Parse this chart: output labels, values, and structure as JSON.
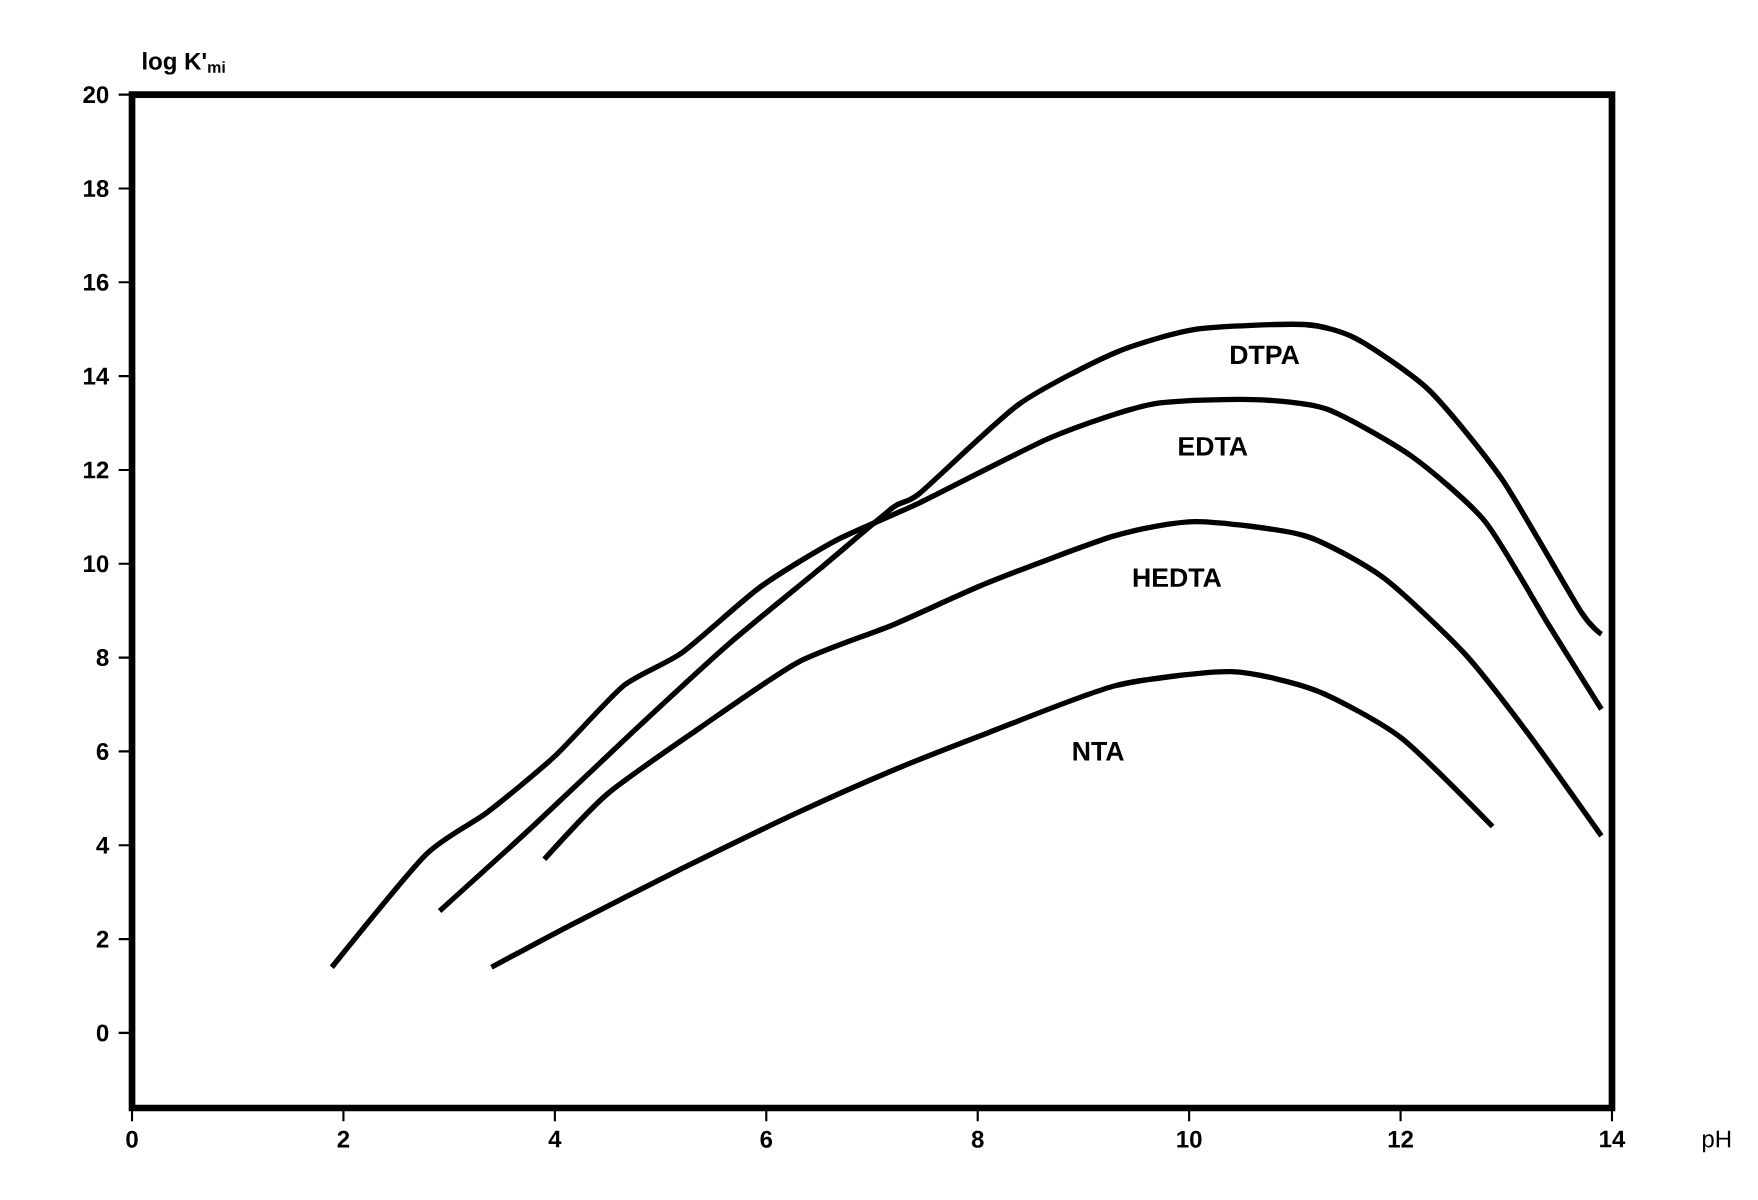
{
  "chart_data": {
    "type": "line",
    "ylabel": "log K'$_{mi}$",
    "xlabel": "pH",
    "xlim": [
      0,
      14
    ],
    "ylim": [
      -1.6,
      20
    ],
    "xticks": [
      0,
      2,
      4,
      6,
      8,
      10,
      12,
      14
    ],
    "yticks": [
      0,
      2,
      4,
      6,
      8,
      10,
      12,
      14,
      16,
      18,
      20
    ],
    "marker": "none",
    "line_style": "solid",
    "series": [
      {
        "name": "DTPA",
        "color": "#000000",
        "x": [
          2.91,
          3.79,
          4.73,
          5.65,
          6.51,
          7.2,
          7.45,
          8.39,
          9.3,
          10.07,
          11.09,
          11.58,
          12.27,
          12.96,
          13.7,
          13.9
        ],
        "values": [
          2.6,
          4.4,
          6.4,
          8.3,
          9.9,
          11.2,
          11.5,
          13.4,
          14.5,
          15.0,
          15.1,
          14.8,
          13.7,
          11.8,
          9.0,
          8.5
        ]
      },
      {
        "name": "EDTA",
        "color": "#000000",
        "x": [
          1.89,
          2.78,
          3.36,
          4.0,
          4.65,
          5.2,
          5.94,
          6.66,
          7.45,
          8.7,
          9.64,
          10.6,
          11.3,
          12.1,
          12.8,
          13.4,
          13.9
        ],
        "values": [
          1.4,
          3.8,
          4.7,
          5.9,
          7.4,
          8.1,
          9.5,
          10.5,
          11.3,
          12.7,
          13.4,
          13.5,
          13.3,
          12.3,
          10.9,
          8.7,
          6.9
        ]
      },
      {
        "name": "HEDTA",
        "color": "#000000",
        "x": [
          3.9,
          4.5,
          5.37,
          6.3,
          7.2,
          8.1,
          9.3,
          10.07,
          11.09,
          11.84,
          12.6,
          13.2,
          13.9
        ],
        "values": [
          3.7,
          5.1,
          6.5,
          7.9,
          8.7,
          9.6,
          10.6,
          10.9,
          10.6,
          9.7,
          8.1,
          6.4,
          4.2
        ]
      },
      {
        "name": "NTA",
        "color": "#000000",
        "x": [
          3.4,
          4.15,
          5.2,
          6.3,
          7.2,
          8.1,
          9.3,
          10.4,
          11.2,
          12.0,
          12.87
        ],
        "values": [
          1.4,
          2.3,
          3.5,
          4.7,
          5.6,
          6.4,
          7.4,
          7.7,
          7.3,
          6.3,
          4.4
        ]
      }
    ]
  }
}
